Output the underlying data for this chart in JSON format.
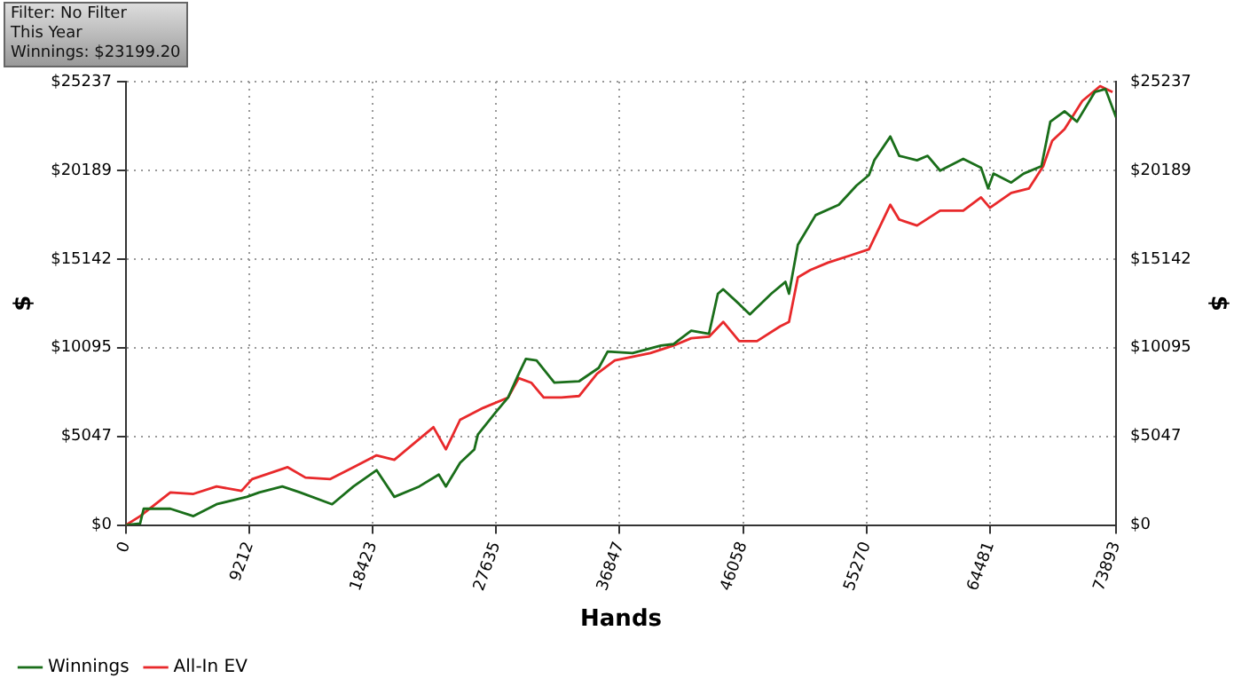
{
  "chart_data": {
    "type": "line",
    "xlabel": "Hands",
    "ylabel": "$",
    "y2label": "$",
    "annotations": [
      "Filter: No Filter",
      "This Year",
      "Winnings: $23199.20"
    ],
    "xlim": [
      0,
      73893
    ],
    "xticks": [
      0,
      9212,
      18423,
      27635,
      36847,
      46058,
      55270,
      64481,
      73893
    ],
    "ylim": [
      0,
      25237
    ],
    "yticks": [
      {
        "value": 0,
        "label": "$0"
      },
      {
        "value": 5047,
        "label": "$5047"
      },
      {
        "value": 10095,
        "label": "$10095"
      },
      {
        "value": 15142,
        "label": "$15142"
      },
      {
        "value": 20189,
        "label": "$20189"
      },
      {
        "value": 25237,
        "label": "$25237"
      }
    ],
    "y2lim": [
      0,
      25237
    ],
    "y2ticks": [
      {
        "value": 0,
        "label": "$0"
      },
      {
        "value": 5047,
        "label": "$5047"
      },
      {
        "value": 10095,
        "label": "$10095"
      },
      {
        "value": 15142,
        "label": "$15142"
      },
      {
        "value": 20189,
        "label": "$20189"
      },
      {
        "value": 25237,
        "label": "$25237"
      }
    ],
    "grid": true,
    "legend": "bottom left",
    "marker": "none",
    "line_style": "solid",
    "series": [
      {
        "name": "Winnings",
        "color": "#1a6e1a",
        "x": [
          0,
          1061,
          1327,
          3317,
          5041,
          6766,
          9021,
          9950,
          11674,
          13001,
          15389,
          16980,
          18705,
          20032,
          21889,
          23348,
          23879,
          24940,
          26001,
          26267,
          27593,
          28522,
          29318,
          29849,
          30645,
          31972,
          33829,
          35288,
          35951,
          37809,
          39931,
          40860,
          42187,
          43513,
          44176,
          44574,
          45768,
          46564,
          48156,
          49218,
          49483,
          50146,
          51473,
          53198,
          54524,
          55453,
          55851,
          57045,
          57709,
          59035,
          59831,
          60760,
          62485,
          63812,
          64342,
          64740,
          66067,
          66995,
          68322,
          68985,
          70046,
          70975,
          72302,
          73098,
          73893
        ],
        "values": [
          0,
          84,
          928,
          928,
          506,
          1182,
          1604,
          1857,
          2194,
          1857,
          1182,
          2194,
          3123,
          1604,
          2194,
          2870,
          2194,
          3545,
          4304,
          5148,
          6414,
          7258,
          8609,
          9453,
          9368,
          8102,
          8187,
          8946,
          9875,
          9790,
          10212,
          10297,
          11056,
          10888,
          13166,
          13420,
          12576,
          11985,
          13166,
          13842,
          13166,
          15952,
          17640,
          18230,
          19328,
          19918,
          20762,
          22113,
          21016,
          20762,
          21016,
          20172,
          20847,
          20340,
          19159,
          20003,
          19496,
          20003,
          20425,
          22957,
          23548,
          22957,
          24645,
          24814,
          23199
        ]
      },
      {
        "name": "All-In EV",
        "color": "#e8292b",
        "x": [
          0,
          1061,
          3317,
          5041,
          6766,
          8623,
          9419,
          12072,
          13399,
          15256,
          16980,
          18705,
          20032,
          21359,
          22951,
          23879,
          24940,
          26665,
          28522,
          29318,
          30247,
          31176,
          32502,
          33829,
          35156,
          36482,
          39136,
          40860,
          42187,
          43513,
          44574,
          45768,
          47095,
          48820,
          49483,
          50146,
          51075,
          52402,
          54127,
          55453,
          57045,
          57709,
          59035,
          60760,
          62485,
          63812,
          64475,
          66067,
          67394,
          68455,
          69118,
          70046,
          71373,
          72700,
          73629
        ],
        "values": [
          0,
          506,
          1857,
          1772,
          2194,
          1941,
          2616,
          3292,
          2701,
          2616,
          3292,
          3967,
          3714,
          4558,
          5570,
          4304,
          5992,
          6668,
          7258,
          8356,
          8102,
          7258,
          7258,
          7343,
          8609,
          9368,
          9790,
          10212,
          10634,
          10719,
          11563,
          10466,
          10466,
          11310,
          11563,
          14095,
          14517,
          14939,
          15361,
          15698,
          18230,
          17386,
          17049,
          17893,
          17893,
          18652,
          18062,
          18906,
          19159,
          20425,
          21860,
          22535,
          24138,
          24982,
          24645
        ]
      }
    ]
  }
}
